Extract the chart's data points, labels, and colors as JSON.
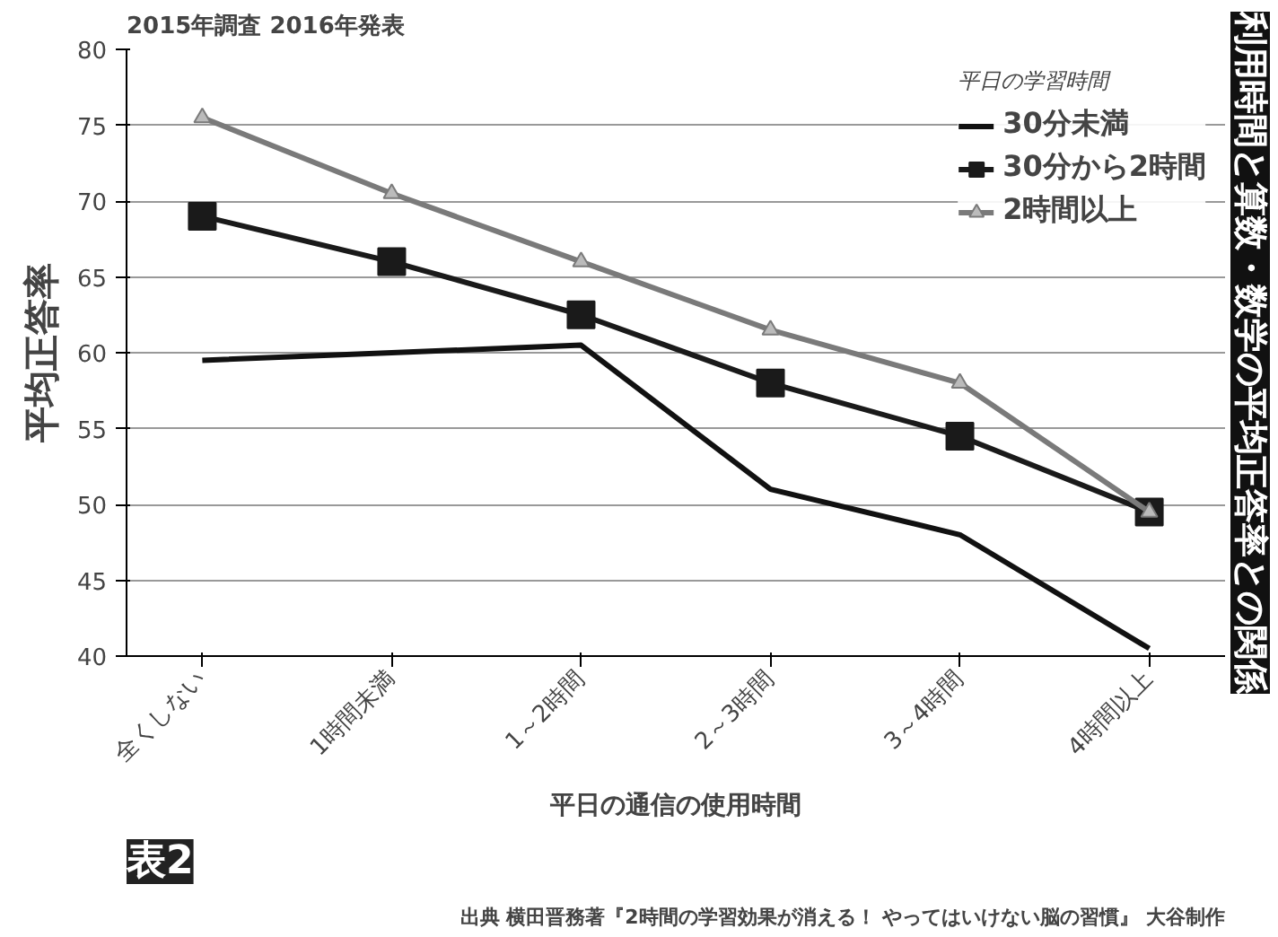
{
  "chart_data": {
    "type": "line",
    "title": "利用時間と算数・数学の平均正答率との関係",
    "xlabel": "平日の通信の使用時間",
    "ylabel": "平均正答率",
    "legend_title": "平日の学習時間",
    "categories": [
      "全くしない",
      "1時間未満",
      "1～2時間",
      "2～3時間",
      "3～4時間",
      "4時間以上"
    ],
    "series": [
      {
        "name": "30分未満",
        "color": "#111111",
        "values": [
          59.5,
          60.0,
          60.5,
          51.0,
          48.0,
          40.5
        ]
      },
      {
        "name": "30分から2時間",
        "color": "#1a1a1a",
        "marker": "square",
        "values": [
          69.0,
          66.0,
          62.5,
          58.0,
          54.5,
          49.5
        ]
      },
      {
        "name": "2時間以上",
        "color": "#7a7a7a",
        "marker": "triangle",
        "values": [
          75.5,
          70.5,
          66.0,
          61.5,
          58.0,
          49.5
        ]
      }
    ],
    "ylim": [
      40,
      80
    ],
    "yticks": [
      40,
      45,
      50,
      55,
      60,
      65,
      70,
      75,
      80
    ],
    "grid": "y",
    "legend": "top right",
    "line_style": "solid",
    "annotations": [
      "2015年調査 2016年発表",
      "表2",
      "出典 横田晋務著『2時間の学習効果が消える！ やってはいけない脳の習慣』 大谷制作"
    ]
  }
}
